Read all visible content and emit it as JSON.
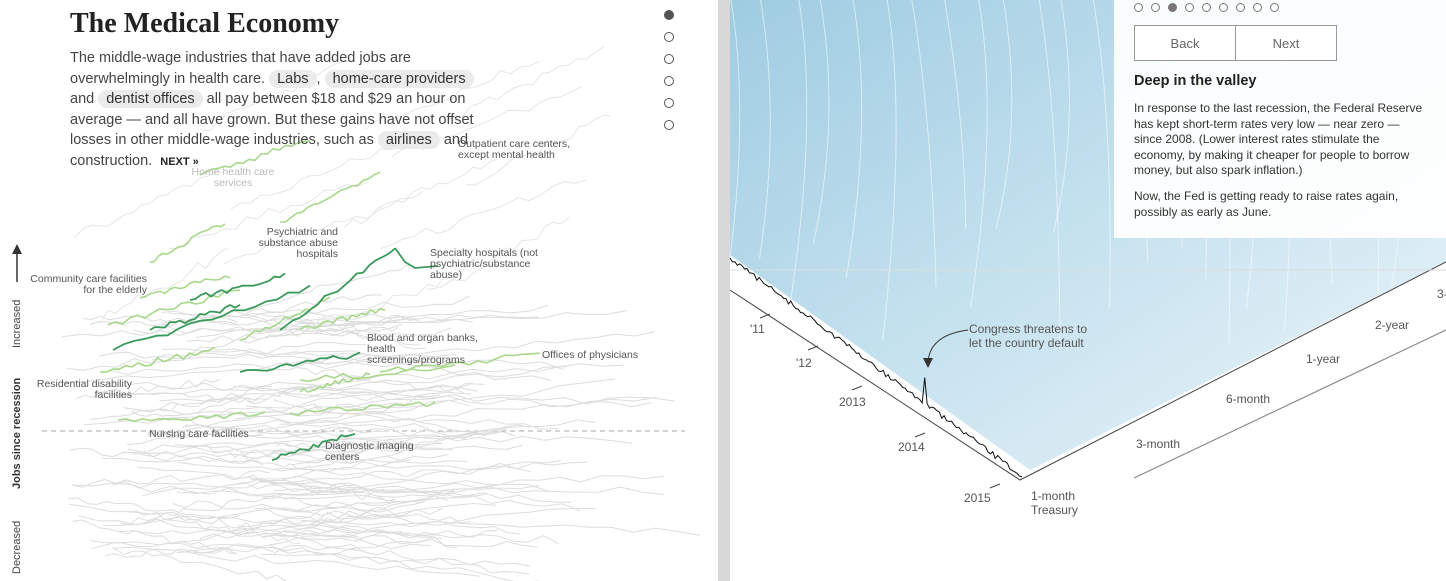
{
  "left": {
    "title": "The Medical Economy",
    "lede": {
      "part1": "The middle-wage industries that have added jobs are overwhelmingly in health care.",
      "pill_labs": "Labs",
      "comma": ",",
      "pill_homecare": "home-care providers",
      "and": "and",
      "pill_dentist": "dentist offices",
      "part2": "all pay between $18 and $29 an hour on average — and all have grown. But these gains have not offset losses in other middle-wage industries, such as",
      "pill_airlines": "airlines",
      "part3": "and construction.",
      "next": "NEXT »"
    },
    "labels": {
      "outpatient": "Outpatient care centers, except mental health",
      "home_health": "Home health care services",
      "psychiatric": "Psychiatric and substance abuse hospitals",
      "specialty": "Specialty hospitals (not psychiatric/substance abuse)",
      "community": "Community care facilities for the elderly",
      "blood": "Blood and organ banks, health screenings/programs",
      "physicians": "Offices of physicians",
      "residential": "Residential disability facilities",
      "nursing": "Nursing care facilities",
      "diagnostic": "Diagnostic imaging centers"
    },
    "axis": {
      "increased": "Increased",
      "jobs": "Jobs since recession",
      "decreased": "Decreased"
    },
    "nav_dots": {
      "count": 6,
      "active": 0
    }
  },
  "right": {
    "nav_dots": {
      "count": 9,
      "active": 2
    },
    "back_label": "Back",
    "next_label": "Next",
    "heading": "Deep in the valley",
    "para1": "In response to the last recession, the Federal Reserve has kept short-term rates very low — near zero — since 2008. (Lower interest rates stimulate the economy, by making it cheaper for people to borrow money, but also spark inflation.)",
    "para2": "Now, the Fed is getting ready to raise rates again, possibly as early as June.",
    "annotation": "Congress threatens to let the country default",
    "year_labels": [
      "'11",
      "'12",
      "2013",
      "2014",
      "2015"
    ],
    "term_labels": [
      "1-month Treasury",
      "3-month",
      "6-month",
      "1-year",
      "2-year",
      "3-"
    ],
    "colors": {
      "surface": "#c6e2ef",
      "accent_green": "#3a9a5b",
      "light_green": "#a8d88a"
    }
  }
}
